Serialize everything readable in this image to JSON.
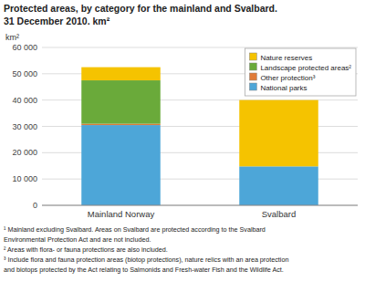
{
  "chart_data": {
    "type": "bar",
    "stacked": true,
    "title": "Protected areas, by category for the mainland and Svalbard.",
    "subtitle": "31 December 2010. km²",
    "ylabel": "km²",
    "categories": [
      "Mainland Norway",
      "Svalbard"
    ],
    "series": [
      {
        "name": "National parks",
        "color": "#4da6d8",
        "values": [
          30500,
          14800
        ]
      },
      {
        "name": "Other protection³",
        "color": "#e07b39",
        "values": [
          500,
          0
        ]
      },
      {
        "name": "Landscape protected areas²",
        "color": "#6aaa3a",
        "values": [
          16500,
          0
        ]
      },
      {
        "name": "Nature reserves",
        "color": "#f5c300",
        "values": [
          5000,
          25200
        ]
      }
    ],
    "ylim": [
      0,
      60000
    ],
    "yticks": [
      0,
      {
        "value": 10000,
        "label": "10 000"
      },
      {
        "value": 20000,
        "label": "20 000"
      },
      {
        "value": 30000,
        "label": "30 000"
      },
      {
        "value": 40000,
        "label": "40 000"
      },
      {
        "value": 50000,
        "label": "50 000"
      },
      {
        "value": 60000,
        "label": "60 000"
      }
    ],
    "grid": true,
    "legend": "upper right",
    "annotations": [
      "¹ Mainland excluding Svalbard. Areas on Svalbard are protected according to the Svalbard",
      "Environmental Protection Act and are not included.",
      "² Areas with flora- or fauna protections are also included.",
      "³ Include flora and fauna protection areas (biotop protections), nature relics with an area protection",
      "and biotops protected by the Act relating to Salmonids and Fresh-water Fish and the Wildlife Act."
    ]
  }
}
